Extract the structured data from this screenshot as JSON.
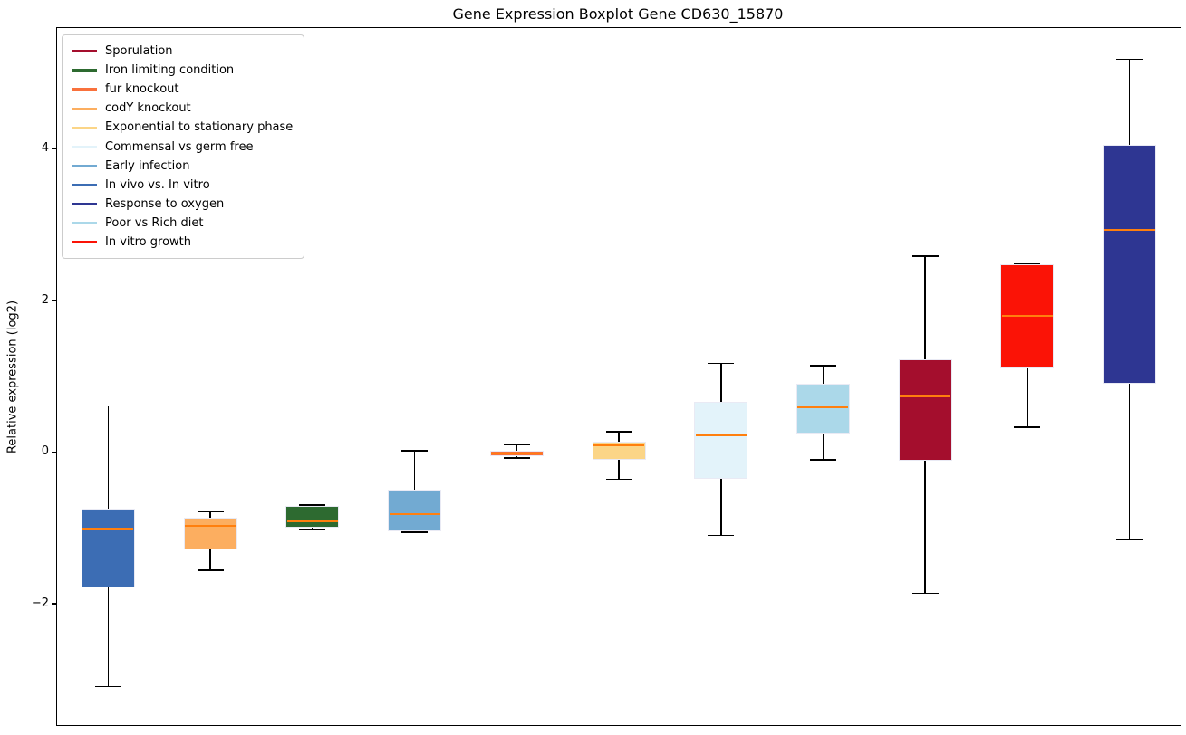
{
  "figure": {
    "title": "Gene Expression Boxplot Gene CD630_15870",
    "ylabel": "Relative expression (log2)"
  },
  "chart_data": {
    "type": "boxplot",
    "title": "Gene Expression Boxplot Gene CD630_15870",
    "xlabel": "",
    "ylabel": "Relative expression (log2)",
    "grid": false,
    "legend_position": "upper left",
    "ylim": [
      -3.6,
      5.6
    ],
    "yticks": [
      {
        "value": 4,
        "label": "4"
      },
      {
        "value": 2,
        "label": "2"
      },
      {
        "value": 0,
        "label": "0"
      },
      {
        "value": -2,
        "label": "−2"
      }
    ],
    "median_color": "#ff7f0e",
    "whisker_color": "#000000",
    "legend": [
      {
        "label": "Sporulation",
        "color": "#a40e2d"
      },
      {
        "label": "Iron limiting condition",
        "color": "#2d6a30"
      },
      {
        "label": "fur knockout",
        "color": "#f9713c"
      },
      {
        "label": "codY knockout",
        "color": "#fcae60"
      },
      {
        "label": "Exponential to stationary phase",
        "color": "#fbd587"
      },
      {
        "label": "Commensal vs germ free",
        "color": "#e3f3fa"
      },
      {
        "label": "Early infection",
        "color": "#72aad2"
      },
      {
        "label": "In vivo vs. In vitro",
        "color": "#3c6db4"
      },
      {
        "label": "Response to oxygen",
        "color": "#2e3692"
      },
      {
        "label": "Poor vs Rich diet",
        "color": "#abd8e9"
      },
      {
        "label": "In vitro growth",
        "color": "#fb1306"
      }
    ],
    "boxes": [
      {
        "condition": "In vivo vs. In vitro",
        "color": "#3c6db4",
        "whisker_low": -3.08,
        "q1": -1.77,
        "median": -1.0,
        "q3": -0.74,
        "whisker_high": 0.62
      },
      {
        "condition": "codY knockout",
        "color": "#fcae60",
        "whisker_low": -1.55,
        "q1": -1.27,
        "median": -0.96,
        "q3": -0.86,
        "whisker_high": -0.78
      },
      {
        "condition": "Iron limiting condition",
        "color": "#2d6a30",
        "whisker_low": -1.01,
        "q1": -0.99,
        "median": -0.9,
        "q3": -0.7,
        "whisker_high": -0.69
      },
      {
        "condition": "Early infection",
        "color": "#72aad2",
        "whisker_low": -1.05,
        "q1": -1.03,
        "median": -0.81,
        "q3": -0.49,
        "whisker_high": 0.03
      },
      {
        "condition": "fur knockout",
        "color": "#f9713c",
        "whisker_low": -0.07,
        "q1": -0.04,
        "median": -0.01,
        "q3": 0.03,
        "whisker_high": 0.11
      },
      {
        "condition": "Exponential to stationary phase",
        "color": "#fbd587",
        "whisker_low": -0.35,
        "q1": -0.09,
        "median": 0.1,
        "q3": 0.15,
        "whisker_high": 0.28
      },
      {
        "condition": "Commensal vs germ free",
        "color": "#e3f3fa",
        "whisker_low": -1.09,
        "q1": -0.34,
        "median": 0.23,
        "q3": 0.67,
        "whisker_high": 1.18
      },
      {
        "condition": "Poor vs Rich diet",
        "color": "#abd8e9",
        "whisker_low": -0.09,
        "q1": 0.26,
        "median": 0.6,
        "q3": 0.91,
        "whisker_high": 1.15
      },
      {
        "condition": "Sporulation",
        "color": "#a40e2d",
        "whisker_low": -1.85,
        "q1": -0.1,
        "median": 0.75,
        "q3": 1.23,
        "whisker_high": 2.59
      },
      {
        "condition": "In vitro growth",
        "color": "#fb1306",
        "whisker_low": 0.34,
        "q1": 1.11,
        "median": 1.81,
        "q3": 2.48,
        "whisker_high": 2.49
      },
      {
        "condition": "Response to oxygen",
        "color": "#2e3692",
        "whisker_low": -1.14,
        "q1": 0.91,
        "median": 2.94,
        "q3": 4.06,
        "whisker_high": 5.19
      }
    ]
  }
}
